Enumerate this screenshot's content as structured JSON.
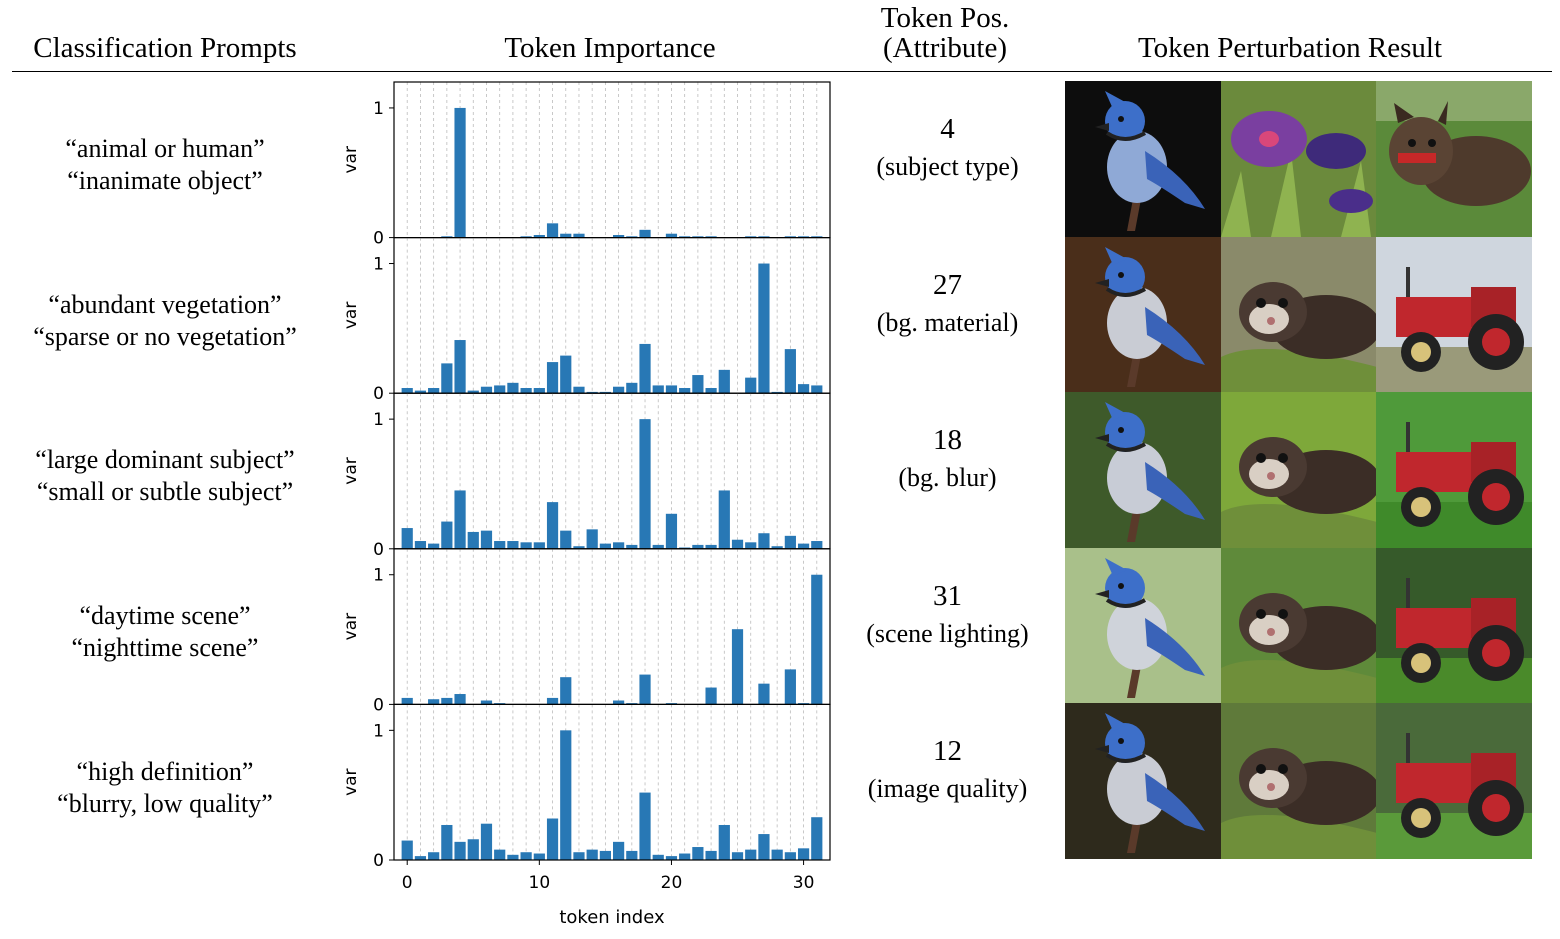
{
  "headers": {
    "prompts": "Classification Prompts",
    "importance": "Token Importance",
    "pos_line1": "Token Pos.",
    "pos_line2": "(Attribute)",
    "perturbation": "Token Perturbation Result"
  },
  "rows": [
    {
      "prompt_a": "“animal or human”",
      "prompt_b": "“inanimate object”",
      "token": "4",
      "attribute": "(subject type)"
    },
    {
      "prompt_a": "“abundant vegetation”",
      "prompt_b": "“sparse or no vegetation”",
      "token": "27",
      "attribute": "(bg. material)"
    },
    {
      "prompt_a": "“large dominant subject”",
      "prompt_b": "“small or subtle subject”",
      "token": "18",
      "attribute": "(bg. blur)"
    },
    {
      "prompt_a": "“daytime scene”",
      "prompt_b": "“nighttime scene”",
      "token": "31",
      "attribute": "(scene lighting)"
    },
    {
      "prompt_a": "“high definition”",
      "prompt_b": "“blurry, low quality”",
      "token": "12",
      "attribute": "(image quality)"
    }
  ],
  "images": [
    [
      "blue jay (metallic)",
      "purple flower",
      "terrier dog"
    ],
    [
      "blue jay",
      "ferret",
      "red tractor"
    ],
    [
      "blue jay",
      "ferret",
      "red tractor (blurred)"
    ],
    [
      "blue jay",
      "ferret",
      "red tractor"
    ],
    [
      "blue jay",
      "ferret",
      "red tractor"
    ]
  ],
  "colors": {
    "bar": "#2878b5",
    "grid": "#bbbbbb",
    "axis": "#000000"
  },
  "chart_data": {
    "type": "bar",
    "xlabel": "token index",
    "ylabel": "var",
    "xticks": [
      0,
      10,
      20,
      30
    ],
    "yticks": [
      0,
      1
    ],
    "xlim": [
      -1,
      32
    ],
    "ylim": [
      0,
      1.2
    ],
    "grid": "vertical dashed",
    "series": [
      {
        "values": [
          0.0,
          0.0,
          0.0,
          0.01,
          1.0,
          0.0,
          0.0,
          0.0,
          0.0,
          0.01,
          0.02,
          0.11,
          0.03,
          0.03,
          0.0,
          0.0,
          0.02,
          0.01,
          0.06,
          0.0,
          0.03,
          0.01,
          0.01,
          0.01,
          0.0,
          0.0,
          0.01,
          0.01,
          0.0,
          0.01,
          0.01,
          0.01
        ]
      },
      {
        "values": [
          0.04,
          0.02,
          0.04,
          0.23,
          0.41,
          0.02,
          0.05,
          0.06,
          0.08,
          0.04,
          0.04,
          0.24,
          0.29,
          0.05,
          0.01,
          0.01,
          0.05,
          0.08,
          0.38,
          0.06,
          0.06,
          0.04,
          0.14,
          0.04,
          0.18,
          0.0,
          0.12,
          1.0,
          0.01,
          0.34,
          0.07,
          0.06
        ]
      },
      {
        "values": [
          0.16,
          0.06,
          0.04,
          0.21,
          0.45,
          0.13,
          0.14,
          0.06,
          0.06,
          0.05,
          0.05,
          0.36,
          0.14,
          0.02,
          0.15,
          0.04,
          0.05,
          0.03,
          1.0,
          0.03,
          0.27,
          0.01,
          0.03,
          0.03,
          0.45,
          0.07,
          0.05,
          0.12,
          0.02,
          0.1,
          0.04,
          0.06
        ]
      },
      {
        "values": [
          0.05,
          0.0,
          0.04,
          0.05,
          0.08,
          0.0,
          0.03,
          0.01,
          0.0,
          0.0,
          0.0,
          0.05,
          0.21,
          0.0,
          0.0,
          0.0,
          0.03,
          0.01,
          0.23,
          0.0,
          0.01,
          0.0,
          0.0,
          0.13,
          0.0,
          0.58,
          0.0,
          0.16,
          0.0,
          0.27,
          0.01,
          1.0
        ]
      },
      {
        "values": [
          0.15,
          0.03,
          0.06,
          0.27,
          0.14,
          0.16,
          0.28,
          0.08,
          0.04,
          0.06,
          0.05,
          0.32,
          1.0,
          0.06,
          0.08,
          0.07,
          0.14,
          0.07,
          0.52,
          0.04,
          0.03,
          0.05,
          0.1,
          0.07,
          0.27,
          0.06,
          0.08,
          0.2,
          0.08,
          0.06,
          0.09,
          0.33
        ]
      }
    ]
  }
}
